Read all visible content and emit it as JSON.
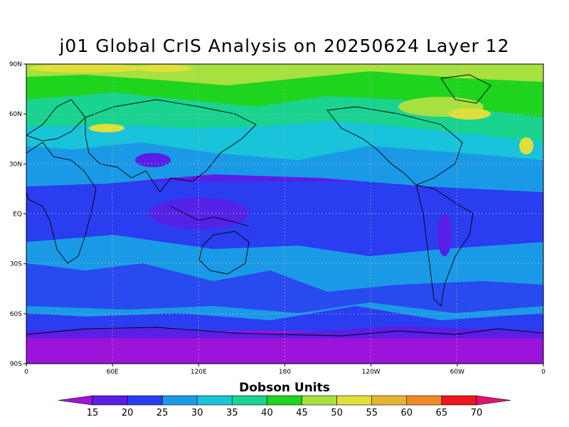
{
  "title": "j01 Global CrIS Analysis on 20250624 Layer 12",
  "colorbar": {
    "title": "Dobson Units",
    "tick_labels": [
      "15",
      "20",
      "25",
      "30",
      "35",
      "40",
      "45",
      "50",
      "55",
      "60",
      "65",
      "70"
    ],
    "colors": [
      "#9b14d9",
      "#5a1ee6",
      "#2a3df0",
      "#1a9ae6",
      "#19c3d9",
      "#19d38f",
      "#1ed41e",
      "#a8e040",
      "#e0df3a",
      "#e6b42d",
      "#f08a28",
      "#f0141e",
      "#e0146e"
    ]
  },
  "axes": {
    "x_ticks": [
      "0",
      "60E",
      "120E",
      "180",
      "120W",
      "60W",
      "0"
    ],
    "y_ticks": [
      "90N",
      "60N",
      "30N",
      "EQ",
      "30S",
      "60S",
      "90S"
    ]
  }
}
